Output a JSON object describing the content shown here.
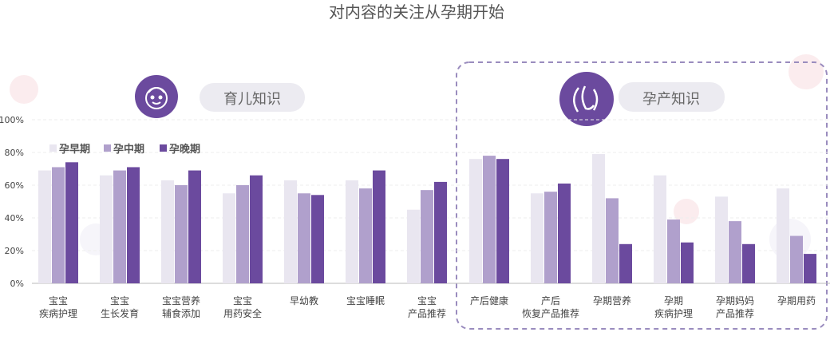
{
  "header": {
    "title": "对内容的关注从孕期开始"
  },
  "sections": {
    "parenting": {
      "icon": "baby-face-icon",
      "label": "育儿知识"
    },
    "pregnancy": {
      "icon": "pregnancy-icon",
      "label": "孕产知识"
    }
  },
  "colors": {
    "early": "#e9e6f0",
    "mid": "#b0a0cc",
    "late": "#6b4a9e",
    "icon_bg": "#6b4a9e",
    "pill_bg": "#ecebf1",
    "dashed_border": "#9a8cbe",
    "axis_text": "#444444"
  },
  "chart_data": {
    "type": "bar",
    "ylim": [
      0,
      100
    ],
    "yticks": [
      "0%",
      "20%",
      "40%",
      "60%",
      "80%",
      "100%"
    ],
    "legend_position": "top-left",
    "grid": true,
    "categories": [
      "宝宝\n疾病护理",
      "宝宝\n生长发育",
      "宝宝营养\n辅食添加",
      "宝宝\n用药安全",
      "早幼教",
      "宝宝睡眠",
      "宝宝\n产品推荐",
      "产后健康",
      "产后\n恢复产品推荐",
      "孕期营养",
      "孕期\n疾病护理",
      "孕期妈妈\n产品推荐",
      "孕期用药"
    ],
    "series": [
      {
        "name": "孕早期",
        "values": [
          69,
          66,
          63,
          55,
          63,
          63,
          45,
          76,
          55,
          79,
          66,
          53,
          58
        ]
      },
      {
        "name": "孕中期",
        "values": [
          71,
          69,
          60,
          60,
          55,
          58,
          57,
          78,
          56,
          52,
          39,
          38,
          29
        ]
      },
      {
        "name": "孕晚期",
        "values": [
          74,
          71,
          69,
          66,
          54,
          69,
          62,
          76,
          61,
          24,
          25,
          24,
          18
        ]
      }
    ]
  }
}
